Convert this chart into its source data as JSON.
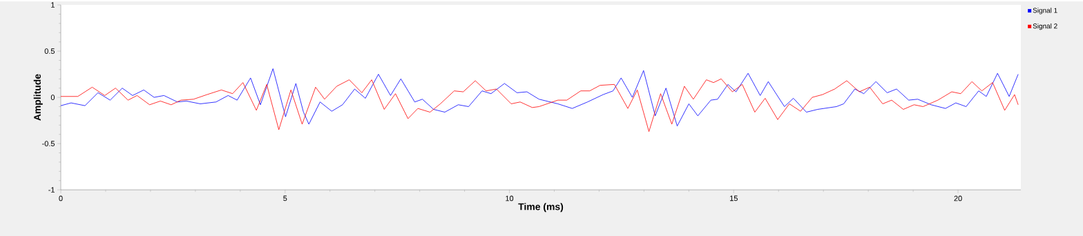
{
  "chart_data": {
    "type": "line",
    "xlabel": "Time (ms)",
    "ylabel": "Amplitude",
    "xlim": [
      0,
      21.4
    ],
    "ylim": [
      -1,
      1
    ],
    "xticks": [
      0,
      5,
      10,
      15,
      20
    ],
    "yticks": [
      -1,
      -0.5,
      0,
      0.5,
      1
    ],
    "grid": false,
    "legend": "top right",
    "marker": "none",
    "line_style": "solid",
    "series": [
      {
        "name": "Signal 1",
        "color": "#0000ff",
        "x": [
          0,
          0.23,
          0.54,
          0.83,
          1.1,
          1.37,
          1.6,
          1.85,
          2.08,
          2.3,
          2.6,
          2.8,
          3.11,
          3.46,
          3.73,
          3.93,
          4.23,
          4.45,
          4.73,
          5.01,
          5.24,
          5.41,
          5.53,
          5.78,
          6.04,
          6.28,
          6.55,
          6.79,
          7.08,
          7.35,
          7.58,
          7.89,
          8.06,
          8.31,
          8.56,
          8.86,
          9.09,
          9.39,
          9.59,
          9.89,
          10.17,
          10.39,
          10.66,
          11.08,
          11.4,
          11.74,
          12.09,
          12.31,
          12.49,
          12.74,
          12.99,
          13.25,
          13.49,
          13.74,
          14.0,
          14.2,
          14.49,
          14.64,
          14.87,
          15.05,
          15.32,
          15.59,
          15.77,
          16.13,
          16.33,
          16.62,
          16.87,
          17.29,
          17.45,
          17.7,
          17.9,
          18.17,
          18.42,
          18.63,
          18.9,
          19.1,
          19.4,
          19.72,
          19.95,
          20.18,
          20.46,
          20.63,
          20.88,
          21.14,
          21.34
        ],
        "values": [
          -0.09,
          -0.06,
          -0.09,
          0.05,
          -0.03,
          0.1,
          0.02,
          0.08,
          0,
          0.02,
          -0.05,
          -0.04,
          -0.07,
          -0.05,
          0.02,
          -0.03,
          0.21,
          -0.08,
          0.31,
          -0.21,
          0.15,
          -0.16,
          -0.29,
          -0.05,
          -0.15,
          -0.08,
          0.09,
          -0.01,
          0.25,
          0.02,
          0.2,
          -0.05,
          -0.02,
          -0.13,
          -0.16,
          -0.08,
          -0.1,
          0.07,
          0.04,
          0.15,
          0.05,
          0.06,
          -0.02,
          -0.07,
          -0.12,
          -0.05,
          0.03,
          0.07,
          0.21,
          0,
          0.29,
          -0.2,
          0.1,
          -0.31,
          -0.07,
          -0.2,
          -0.03,
          -0.02,
          0.14,
          0.06,
          0.26,
          0.02,
          0.17,
          -0.1,
          -0.01,
          -0.16,
          -0.13,
          -0.1,
          -0.07,
          0.09,
          0.04,
          0.17,
          0.05,
          0.09,
          -0.03,
          -0.02,
          -0.08,
          -0.12,
          -0.06,
          -0.1,
          0.07,
          0.01,
          0.26,
          0.01,
          0.25
        ]
      },
      {
        "name": "Signal 2",
        "color": "#ff0000",
        "x": [
          0,
          0.38,
          0.7,
          0.98,
          1.22,
          1.5,
          1.7,
          1.98,
          2.22,
          2.46,
          2.68,
          2.96,
          3.26,
          3.58,
          3.83,
          4.06,
          4.36,
          4.59,
          4.86,
          5.13,
          5.38,
          5.68,
          5.88,
          6.15,
          6.43,
          6.71,
          6.93,
          7.21,
          7.46,
          7.74,
          7.96,
          8.23,
          8.46,
          8.77,
          8.97,
          9.24,
          9.48,
          9.71,
          10.04,
          10.24,
          10.51,
          10.66,
          11.08,
          11.28,
          11.59,
          11.79,
          12.02,
          12.34,
          12.64,
          12.85,
          13.11,
          13.37,
          13.62,
          13.9,
          14.1,
          14.39,
          14.55,
          14.72,
          14.97,
          15.19,
          15.47,
          15.7,
          15.98,
          16.24,
          16.49,
          16.75,
          16.98,
          17.25,
          17.52,
          17.8,
          18.03,
          18.32,
          18.52,
          18.78,
          19.02,
          19.22,
          19.55,
          19.86,
          20.06,
          20.31,
          20.53,
          20.77,
          21.04,
          21.26,
          21.34
        ],
        "values": [
          0.01,
          0.01,
          0.11,
          0.02,
          0.1,
          -0.03,
          0.02,
          -0.08,
          -0.04,
          -0.08,
          -0.03,
          -0.02,
          0.03,
          0.08,
          0.04,
          0.16,
          -0.14,
          0.14,
          -0.35,
          0.08,
          -0.29,
          0.11,
          -0.02,
          0.12,
          0.19,
          0.05,
          0.19,
          -0.13,
          0.04,
          -0.23,
          -0.12,
          -0.16,
          -0.07,
          0.07,
          0.06,
          0.18,
          0.07,
          0.09,
          -0.07,
          -0.05,
          -0.11,
          -0.1,
          -0.03,
          -0.03,
          0.07,
          0.07,
          0.13,
          0.14,
          -0.12,
          0.08,
          -0.37,
          0.04,
          -0.29,
          0.12,
          -0.02,
          0.19,
          0.16,
          0.2,
          0.06,
          0.14,
          -0.16,
          -0.01,
          -0.24,
          -0.07,
          -0.15,
          0,
          0.03,
          0.09,
          0.18,
          0.06,
          0.11,
          -0.07,
          -0.03,
          -0.13,
          -0.08,
          -0.1,
          -0.03,
          0.06,
          0.04,
          0.17,
          0.07,
          0.16,
          -0.14,
          0.03,
          -0.08
        ]
      }
    ]
  }
}
